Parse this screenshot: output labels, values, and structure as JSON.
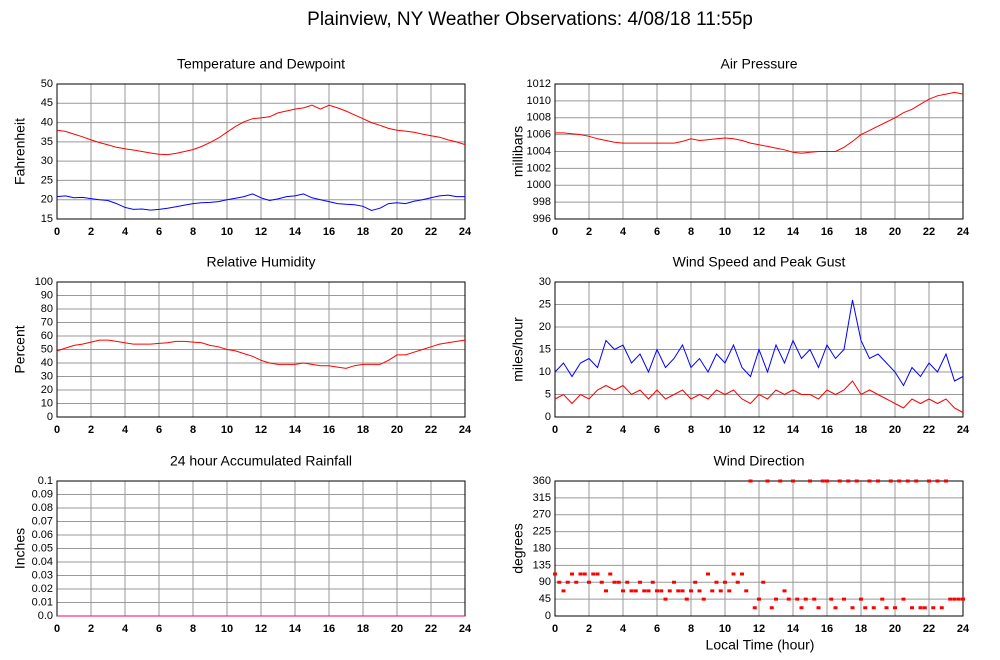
{
  "title": "Plainview, NY Weather Observations: 4/08/18 11:55p",
  "x_label": "Local Time (hour)",
  "chart_data": [
    {
      "type": "line",
      "title": "Temperature and Dewpoint",
      "y_label": "Fahrenheit",
      "x": [
        0,
        0.5,
        1,
        1.5,
        2,
        2.5,
        3,
        3.5,
        4,
        4.5,
        5,
        5.5,
        6,
        6.5,
        7,
        7.5,
        8,
        8.5,
        9,
        9.5,
        10,
        10.5,
        11,
        11.5,
        12,
        12.5,
        13,
        13.5,
        14,
        14.5,
        15,
        15.5,
        16,
        16.5,
        17,
        17.5,
        18,
        18.5,
        19,
        19.5,
        20,
        20.5,
        21,
        21.5,
        22,
        22.5,
        23,
        23.5,
        24
      ],
      "series": [
        {
          "color": "#ff0000",
          "values": [
            38,
            37.7,
            37,
            36.3,
            35.5,
            34.8,
            34.2,
            33.6,
            33.2,
            32.9,
            32.5,
            32.1,
            31.8,
            31.7,
            32,
            32.5,
            33,
            33.8,
            34.8,
            36,
            37.5,
            39,
            40.2,
            41,
            41.2,
            41.5,
            42.5,
            43,
            43.5,
            43.8,
            44.5,
            43.5,
            44.5,
            43.8,
            43,
            42,
            41,
            40,
            39.3,
            38.5,
            38,
            37.8,
            37.5,
            37,
            36.6,
            36.2,
            35.5,
            35,
            34.3
          ]
        },
        {
          "color": "#0000ff",
          "values": [
            20.8,
            21,
            20.5,
            20.6,
            20.3,
            20,
            19.8,
            19,
            18,
            17.5,
            17.6,
            17.3,
            17.5,
            17.8,
            18.2,
            18.6,
            19,
            19.2,
            19.3,
            19.5,
            20,
            20.4,
            20.8,
            21.5,
            20.5,
            19.8,
            20.2,
            20.8,
            21,
            21.5,
            20.5,
            20,
            19.5,
            19,
            18.8,
            18.7,
            18.3,
            17.2,
            17.8,
            19,
            19.2,
            19,
            19.6,
            20,
            20.5,
            21,
            21.2,
            20.8,
            20.8
          ]
        }
      ],
      "xlim": [
        0,
        24
      ],
      "xticks": [
        0,
        2,
        4,
        6,
        8,
        10,
        12,
        14,
        16,
        18,
        20,
        22,
        24
      ],
      "ylim": [
        15,
        50
      ],
      "yticks": [
        15,
        20,
        25,
        30,
        35,
        40,
        45,
        50
      ],
      "grid": true
    },
    {
      "type": "line",
      "title": "Air Pressure",
      "y_label": "millibars",
      "x": [
        0,
        0.5,
        1,
        1.5,
        2,
        2.5,
        3,
        3.5,
        4,
        4.5,
        5,
        5.5,
        6,
        6.5,
        7,
        7.5,
        8,
        8.5,
        9,
        9.5,
        10,
        10.5,
        11,
        11.5,
        12,
        12.5,
        13,
        13.5,
        14,
        14.5,
        15,
        15.5,
        16,
        16.5,
        17,
        17.5,
        18,
        18.5,
        19,
        19.5,
        20,
        20.5,
        21,
        21.5,
        22,
        22.5,
        23,
        23.5,
        24
      ],
      "series": [
        {
          "color": "#ff0000",
          "values": [
            1006.2,
            1006.2,
            1006.1,
            1006,
            1005.8,
            1005.5,
            1005.3,
            1005.1,
            1005,
            1005,
            1005,
            1005,
            1005,
            1005,
            1005,
            1005.2,
            1005.5,
            1005.3,
            1005.4,
            1005.5,
            1005.6,
            1005.5,
            1005.3,
            1005,
            1004.8,
            1004.6,
            1004.4,
            1004.2,
            1003.9,
            1003.8,
            1003.9,
            1004,
            1004,
            1004,
            1004.5,
            1005.2,
            1006,
            1006.5,
            1007,
            1007.5,
            1008,
            1008.6,
            1009,
            1009.6,
            1010.2,
            1010.6,
            1010.8,
            1011,
            1010.8
          ]
        }
      ],
      "xlim": [
        0,
        24
      ],
      "xticks": [
        0,
        2,
        4,
        6,
        8,
        10,
        12,
        14,
        16,
        18,
        20,
        22,
        24
      ],
      "ylim": [
        996,
        1012
      ],
      "yticks": [
        996,
        998,
        1000,
        1002,
        1004,
        1006,
        1008,
        1010,
        1012
      ],
      "grid": true
    },
    {
      "type": "line",
      "title": "Relative Humidity",
      "y_label": "Percent",
      "x": [
        0,
        0.5,
        1,
        1.5,
        2,
        2.5,
        3,
        3.5,
        4,
        4.5,
        5,
        5.5,
        6,
        6.5,
        7,
        7.5,
        8,
        8.5,
        9,
        9.5,
        10,
        10.5,
        11,
        11.5,
        12,
        12.5,
        13,
        13.5,
        14,
        14.5,
        15,
        15.5,
        16,
        16.5,
        17,
        17.5,
        18,
        18.5,
        19,
        19.5,
        20,
        20.5,
        21,
        21.5,
        22,
        22.5,
        23,
        23.5,
        24
      ],
      "series": [
        {
          "color": "#ff0000",
          "values": [
            49,
            51,
            53,
            54,
            55.5,
            57,
            57,
            56,
            55,
            54,
            54,
            54,
            54.5,
            55,
            56,
            56,
            55.5,
            55,
            53,
            52,
            50,
            49,
            47,
            45,
            42,
            40,
            39,
            39,
            39,
            40,
            39,
            38,
            38,
            37,
            36,
            38,
            39,
            39,
            39,
            42,
            46,
            46,
            48,
            50,
            52,
            54,
            55,
            56,
            57
          ]
        }
      ],
      "xlim": [
        0,
        24
      ],
      "xticks": [
        0,
        2,
        4,
        6,
        8,
        10,
        12,
        14,
        16,
        18,
        20,
        22,
        24
      ],
      "ylim": [
        0,
        100
      ],
      "yticks": [
        0,
        10,
        20,
        30,
        40,
        50,
        60,
        70,
        80,
        90,
        100
      ],
      "grid": true
    },
    {
      "type": "line",
      "title": "Wind Speed and Peak Gust",
      "y_label": "miles/hour",
      "x": [
        0,
        0.5,
        1,
        1.5,
        2,
        2.5,
        3,
        3.5,
        4,
        4.5,
        5,
        5.5,
        6,
        6.5,
        7,
        7.5,
        8,
        8.5,
        9,
        9.5,
        10,
        10.5,
        11,
        11.5,
        12,
        12.5,
        13,
        13.5,
        14,
        14.5,
        15,
        15.5,
        16,
        16.5,
        17,
        17.5,
        18,
        18.5,
        19,
        19.5,
        20,
        20.5,
        21,
        21.5,
        22,
        22.5,
        23,
        23.5,
        24
      ],
      "series": [
        {
          "color": "#0000ff",
          "values": [
            10,
            12,
            9,
            12,
            13,
            11,
            17,
            15,
            16,
            12,
            14,
            10,
            15,
            11,
            13,
            16,
            11,
            13,
            10,
            14,
            12,
            16,
            11,
            9,
            15,
            10,
            16,
            12,
            17,
            13,
            15,
            11,
            16,
            13,
            15,
            26,
            17,
            13,
            14,
            12,
            10,
            7,
            11,
            9,
            12,
            10,
            14,
            8,
            9
          ]
        },
        {
          "color": "#ff0000",
          "values": [
            4,
            5,
            3,
            5,
            4,
            6,
            7,
            6,
            7,
            5,
            6,
            4,
            6,
            4,
            5,
            6,
            4,
            5,
            4,
            6,
            5,
            6,
            4,
            3,
            5,
            4,
            6,
            5,
            6,
            5,
            5,
            4,
            6,
            5,
            6,
            8,
            5,
            6,
            5,
            4,
            3,
            2,
            4,
            3,
            4,
            3,
            4,
            2,
            1
          ]
        }
      ],
      "xlim": [
        0,
        24
      ],
      "xticks": [
        0,
        2,
        4,
        6,
        8,
        10,
        12,
        14,
        16,
        18,
        20,
        22,
        24
      ],
      "ylim": [
        0,
        30
      ],
      "yticks": [
        0,
        5,
        10,
        15,
        20,
        25,
        30
      ],
      "grid": true
    },
    {
      "type": "line",
      "title": "24 hour Accumulated Rainfall",
      "y_label": "Inches",
      "x": [
        0,
        24
      ],
      "series": [
        {
          "color": "#ff0066",
          "values": [
            0,
            0
          ]
        }
      ],
      "xlim": [
        0,
        24
      ],
      "xticks": [
        0,
        2,
        4,
        6,
        8,
        10,
        12,
        14,
        16,
        18,
        20,
        22,
        24
      ],
      "ylim": [
        0,
        0.1
      ],
      "yticks": [
        {
          "value": 0,
          "label": "0.0"
        },
        0.01,
        0.02,
        0.03,
        0.04,
        0.05,
        0.06,
        0.07,
        0.08,
        0.09,
        0.1
      ],
      "grid": true
    },
    {
      "type": "scatter",
      "title": "Wind Direction",
      "y_label": "degrees",
      "x": [
        0,
        0.25,
        0.5,
        0.75,
        1,
        1.25,
        1.5,
        1.75,
        2,
        2.25,
        2.5,
        2.75,
        3,
        3.25,
        3.5,
        3.75,
        4,
        4.25,
        4.5,
        4.75,
        5,
        5.25,
        5.5,
        5.75,
        6,
        6.25,
        6.5,
        6.75,
        7,
        7.25,
        7.5,
        7.75,
        8,
        8.25,
        8.5,
        8.75,
        9,
        9.25,
        9.5,
        9.75,
        10,
        10.25,
        10.5,
        10.75,
        11,
        11.25,
        11.5,
        11.75,
        12,
        12.25,
        12.5,
        12.75,
        13,
        13.25,
        13.5,
        13.75,
        14,
        14.25,
        14.5,
        14.75,
        15,
        15.25,
        15.5,
        15.75,
        16,
        16.25,
        16.5,
        16.75,
        17,
        17.25,
        17.5,
        17.75,
        18,
        18.25,
        18.5,
        18.75,
        19,
        19.25,
        19.5,
        19.75,
        20,
        20.25,
        20.5,
        20.75,
        21,
        21.25,
        21.5,
        21.75,
        22,
        22.25,
        22.5,
        22.75,
        23,
        23.25,
        23.5,
        23.75,
        24
      ],
      "values": [
        112,
        90,
        67,
        90,
        112,
        90,
        112,
        112,
        90,
        112,
        112,
        90,
        67,
        112,
        90,
        90,
        67,
        90,
        67,
        67,
        90,
        67,
        67,
        90,
        67,
        67,
        45,
        67,
        90,
        67,
        67,
        45,
        67,
        90,
        67,
        45,
        112,
        67,
        90,
        67,
        90,
        67,
        112,
        90,
        112,
        67,
        360,
        22,
        45,
        90,
        360,
        22,
        45,
        360,
        67,
        45,
        360,
        45,
        22,
        45,
        360,
        45,
        22,
        360,
        360,
        45,
        22,
        360,
        45,
        360,
        22,
        360,
        45,
        22,
        360,
        22,
        360,
        45,
        22,
        360,
        22,
        360,
        45,
        360,
        22,
        360,
        22,
        22,
        360,
        22,
        360,
        22,
        360,
        45,
        45,
        45,
        45
      ],
      "color": "#ff0000",
      "xlim": [
        0,
        24
      ],
      "xticks": [
        0,
        2,
        4,
        6,
        8,
        10,
        12,
        14,
        16,
        18,
        20,
        22,
        24
      ],
      "ylim": [
        0,
        360
      ],
      "yticks": [
        0,
        45,
        90,
        135,
        180,
        225,
        270,
        315,
        360
      ],
      "grid": true
    }
  ]
}
